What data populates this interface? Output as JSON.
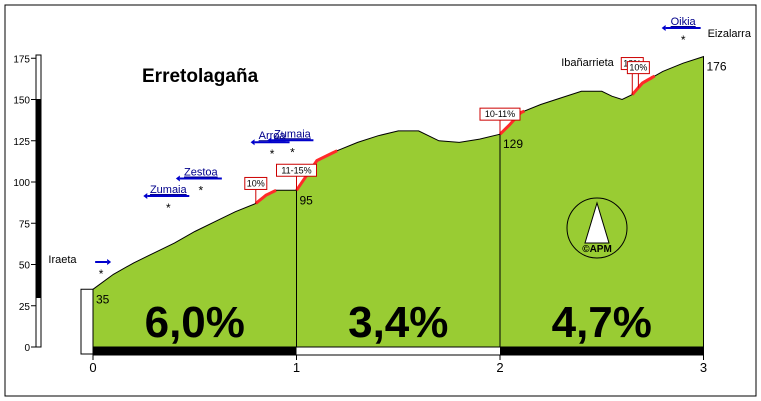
{
  "chart_data": {
    "type": "area",
    "title": "Erretolagaña",
    "xlabel": "",
    "ylabel": "",
    "xlim": [
      0,
      3
    ],
    "ylim": [
      0,
      175
    ],
    "x_ticks": [
      "0",
      "1",
      "2",
      "3"
    ],
    "y_ticks": [
      "0",
      "25",
      "50",
      "75",
      "100",
      "125",
      "150",
      "175"
    ],
    "fill_color": "#99cc33",
    "steep_color": "#ff2a2a",
    "profile": [
      {
        "x": 0.0,
        "y": 35
      },
      {
        "x": 0.1,
        "y": 44
      },
      {
        "x": 0.2,
        "y": 51
      },
      {
        "x": 0.3,
        "y": 57
      },
      {
        "x": 0.4,
        "y": 63
      },
      {
        "x": 0.5,
        "y": 70
      },
      {
        "x": 0.6,
        "y": 76
      },
      {
        "x": 0.7,
        "y": 82
      },
      {
        "x": 0.8,
        "y": 87
      },
      {
        "x": 0.85,
        "y": 92
      },
      {
        "x": 0.9,
        "y": 95
      },
      {
        "x": 1.0,
        "y": 95
      },
      {
        "x": 1.05,
        "y": 104
      },
      {
        "x": 1.1,
        "y": 113
      },
      {
        "x": 1.2,
        "y": 119
      },
      {
        "x": 1.3,
        "y": 124
      },
      {
        "x": 1.4,
        "y": 128
      },
      {
        "x": 1.5,
        "y": 131
      },
      {
        "x": 1.6,
        "y": 131
      },
      {
        "x": 1.7,
        "y": 125
      },
      {
        "x": 1.8,
        "y": 124
      },
      {
        "x": 1.9,
        "y": 126
      },
      {
        "x": 2.0,
        "y": 129
      },
      {
        "x": 2.05,
        "y": 135
      },
      {
        "x": 2.1,
        "y": 142
      },
      {
        "x": 2.2,
        "y": 147
      },
      {
        "x": 2.3,
        "y": 151
      },
      {
        "x": 2.4,
        "y": 155
      },
      {
        "x": 2.5,
        "y": 155
      },
      {
        "x": 2.55,
        "y": 152
      },
      {
        "x": 2.6,
        "y": 150
      },
      {
        "x": 2.65,
        "y": 153
      },
      {
        "x": 2.7,
        "y": 160
      },
      {
        "x": 2.8,
        "y": 167
      },
      {
        "x": 2.9,
        "y": 172
      },
      {
        "x": 3.0,
        "y": 176
      }
    ],
    "steep_sections": [
      {
        "label": "10%",
        "x0": 0.8,
        "x1": 0.9
      },
      {
        "label": "11-15%",
        "x0": 1.0,
        "x1": 1.2
      },
      {
        "label": "10-11%",
        "x0": 2.0,
        "x1": 2.12
      },
      {
        "label": "13%",
        "x0": 2.65,
        "x1": 2.75
      },
      {
        "label": "10%",
        "x0": 2.68,
        "x1": 2.76
      }
    ],
    "segment_gradients": [
      {
        "x0": 0,
        "x1": 1,
        "label": "6,0%"
      },
      {
        "x0": 1,
        "x1": 2,
        "label": "3,4%"
      },
      {
        "x0": 2,
        "x1": 3,
        "label": "4,7%"
      }
    ],
    "altitude_labels": [
      {
        "x": 0,
        "label": "35"
      },
      {
        "x": 1,
        "label": "95"
      },
      {
        "x": 2,
        "label": "129"
      },
      {
        "x": 3,
        "label": "176"
      }
    ],
    "places": [
      {
        "name": "Iraeta",
        "x": -0.15
      },
      {
        "name": "Ibañarrieta",
        "x": 2.43
      },
      {
        "name": "Eizalarra",
        "x": 3.02
      }
    ],
    "directions": [
      {
        "name": "",
        "x": 0.04,
        "arrow": "right"
      },
      {
        "name": "Zumaia",
        "x": 0.37,
        "arrow": "left"
      },
      {
        "name": "Zestoa",
        "x": 0.53,
        "arrow": "left"
      },
      {
        "name": "Arroa",
        "x": 0.88,
        "arrow": "left"
      },
      {
        "name": "Zumaia",
        "x": 0.98,
        "arrow": "left"
      },
      {
        "name": "Oikia",
        "x": 2.9,
        "arrow": "left"
      }
    ],
    "logo_text": "©APM"
  }
}
